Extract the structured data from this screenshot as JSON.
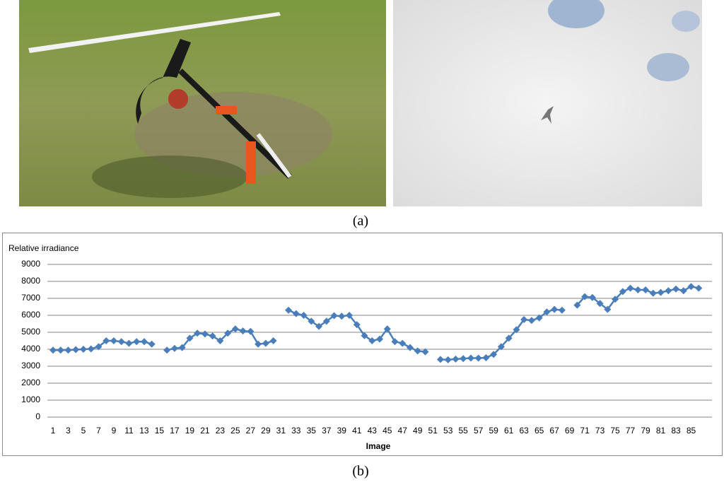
{
  "figure": {
    "label_a": "(a)",
    "label_b": "(b)"
  },
  "chart_data": {
    "type": "line",
    "y_label": "Relative irradiance",
    "x_label": "Image",
    "color": "#4a7ebb",
    "grid": true,
    "categories": [
      "1",
      null,
      "3",
      null,
      "5",
      null,
      "7",
      null,
      "9",
      null,
      "11",
      null,
      "13",
      null,
      "15",
      null,
      "17",
      null,
      "19",
      null,
      "21",
      null,
      "23",
      null,
      "25",
      null,
      "27",
      null,
      "29",
      null,
      "31",
      null,
      "33",
      null,
      "35",
      null,
      "37",
      null,
      "39",
      null,
      "41",
      null,
      "43",
      null,
      "45",
      null,
      "47",
      null,
      "49",
      null,
      "51",
      null,
      "53",
      null,
      "55",
      null,
      "57",
      null,
      "59",
      null,
      "61",
      null,
      "63",
      null,
      "65",
      null,
      "67",
      null,
      "69",
      null,
      "71",
      null,
      "73",
      null,
      "75",
      null,
      "77",
      null,
      "79",
      null,
      "81",
      null,
      "83",
      null,
      "85",
      null
    ],
    "values": [
      3950,
      3950,
      3950,
      3980,
      4000,
      4020,
      4150,
      4500,
      4500,
      4450,
      4350,
      4450,
      4450,
      4300,
      null,
      3950,
      4050,
      4100,
      4650,
      4950,
      4900,
      4780,
      4500,
      4950,
      5200,
      5080,
      5050,
      4300,
      4350,
      4500,
      null,
      6300,
      6100,
      6000,
      5650,
      5350,
      5650,
      5980,
      5950,
      6000,
      5450,
      4800,
      4500,
      4600,
      5200,
      4450,
      4350,
      4100,
      3900,
      3850,
      null,
      3400,
      3380,
      3420,
      3450,
      3480,
      3480,
      3500,
      3700,
      4150,
      4650,
      5150,
      5750,
      5700,
      5850,
      6200,
      6350,
      6300,
      null,
      6600,
      7100,
      7050,
      6700,
      6350,
      6950,
      7400,
      7600,
      7500,
      7500,
      7300,
      7350,
      7450,
      7550,
      7450,
      7700,
      7600
    ],
    "ylim": [
      0,
      9000
    ],
    "yticks": [
      0,
      1000,
      2000,
      3000,
      4000,
      5000,
      6000,
      7000,
      8000,
      9000
    ]
  }
}
